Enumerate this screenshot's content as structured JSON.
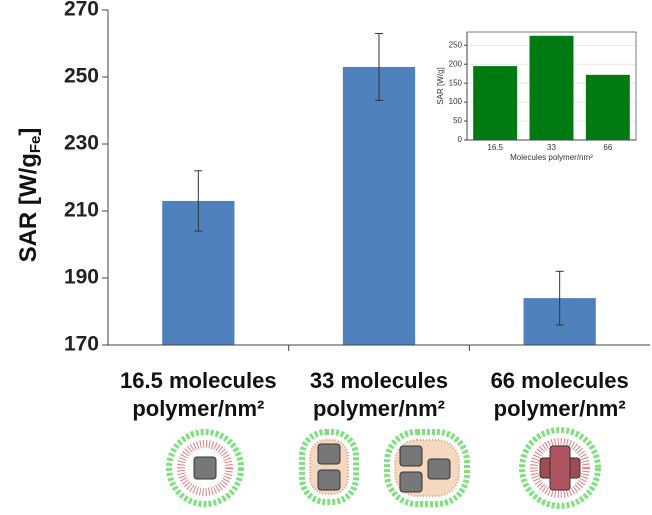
{
  "chart_data": [
    {
      "type": "bar",
      "ylabel": {
        "main": "SAR [W/g",
        "sub": "Fe",
        "end": "]"
      },
      "categories": [
        [
          "16.5 molecules",
          "polymer/nm²"
        ],
        [
          "33 molecules",
          "polymer/nm²"
        ],
        [
          "66 molecules",
          "polymer/nm²"
        ]
      ],
      "values": [
        213,
        253,
        184
      ],
      "errors": [
        9,
        10,
        8
      ],
      "color": "#4f81bd",
      "ylim": [
        170,
        270
      ],
      "yticks": [
        170,
        190,
        210,
        230,
        250,
        270
      ],
      "grid": false
    },
    {
      "type": "bar",
      "xlabel": "Molecules polymer/nm²",
      "ylabel": "SAR [W/g]",
      "categories": [
        "16.5",
        "33",
        "66"
      ],
      "values": [
        195,
        275,
        172
      ],
      "color": "#007a12",
      "ylim": [
        0,
        285
      ],
      "yticks": [
        0,
        50,
        100,
        150,
        200,
        250
      ],
      "grid": true
    }
  ]
}
